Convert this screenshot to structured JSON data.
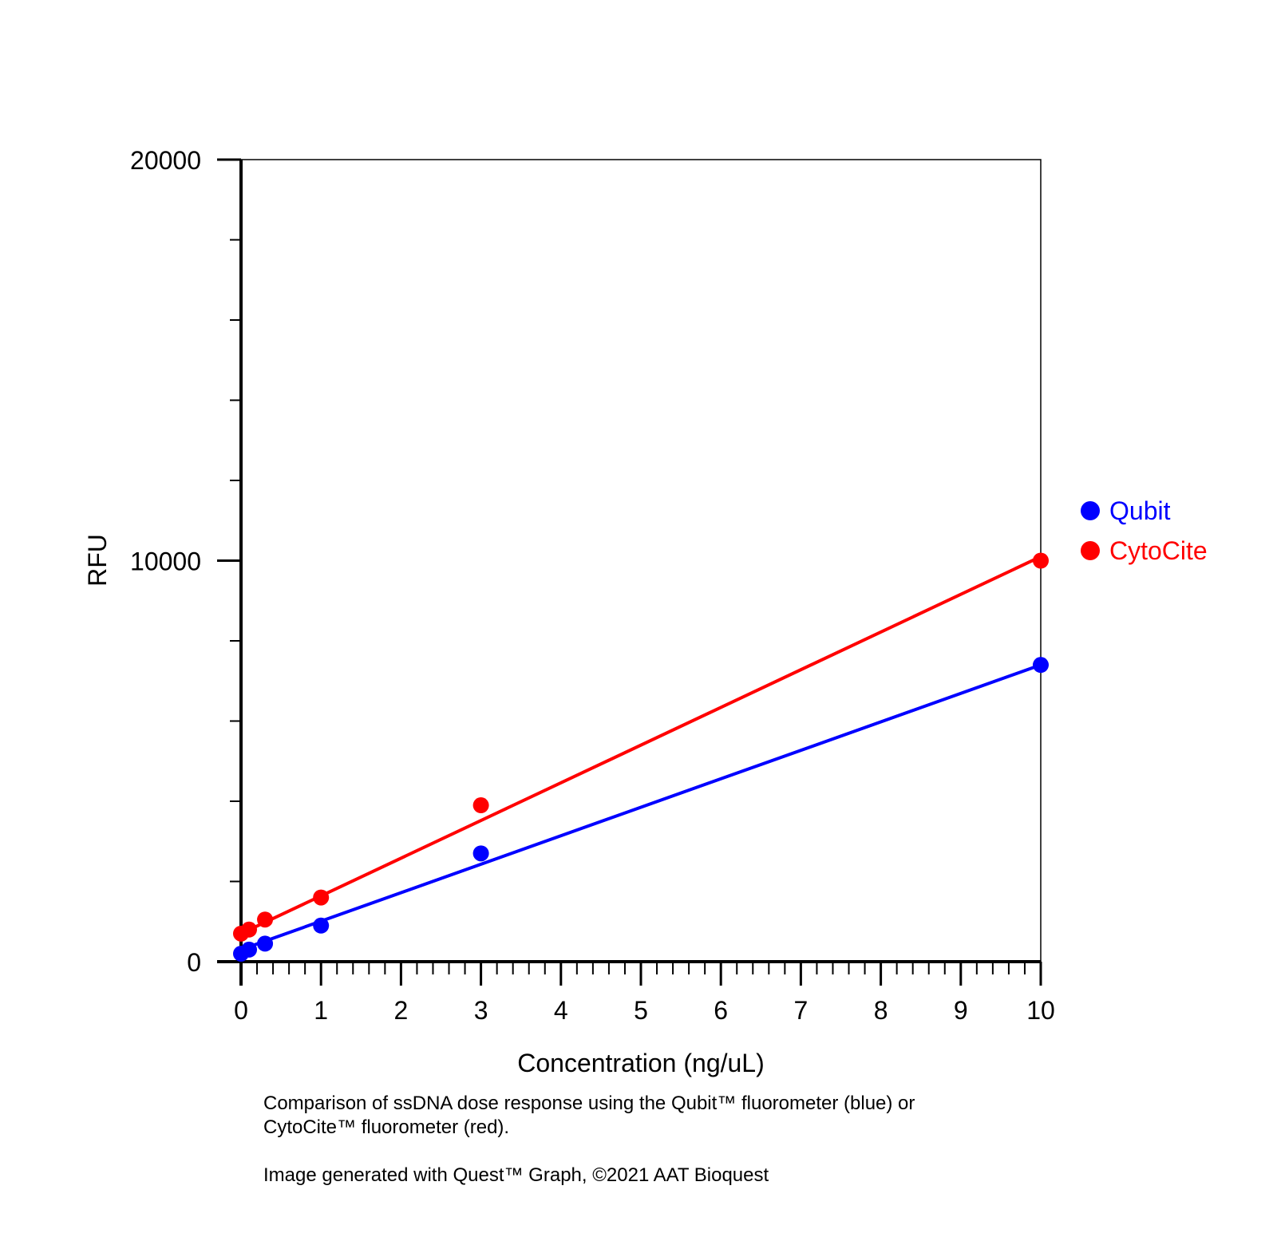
{
  "chart_data": {
    "type": "scatter",
    "xlabel": "Concentration (ng/uL)",
    "ylabel": "RFU",
    "xlim": [
      0,
      10
    ],
    "ylim": [
      0,
      20000
    ],
    "x_ticks": [
      "0",
      "1",
      "2",
      "3",
      "4",
      "5",
      "6",
      "7",
      "8",
      "9",
      "10"
    ],
    "y_ticks": [
      "0",
      "10000",
      "20000"
    ],
    "grid": false,
    "legend_placement": "right",
    "series": [
      {
        "name": "Qubit",
        "color": "#0000ff",
        "x": [
          0,
          0.1,
          0.3,
          1,
          3,
          10
        ],
        "y": [
          200,
          300,
          450,
          900,
          2700,
          7400
        ],
        "fit": [
          [
            0,
            300
          ],
          [
            10,
            7400
          ]
        ]
      },
      {
        "name": "CytoCite",
        "color": "#ff0000",
        "x": [
          0,
          0.1,
          0.3,
          1,
          3,
          10
        ],
        "y": [
          700,
          800,
          1050,
          1600,
          3900,
          10000
        ],
        "fit": [
          [
            0,
            700
          ],
          [
            10,
            10100
          ]
        ]
      }
    ]
  },
  "caption": {
    "line1": "Comparison of ssDNA dose response using the Qubit™ fluorometer (blue) or",
    "line2": "CytoCite™ fluorometer (red).",
    "credit": "Image generated with Quest™ Graph, ©2021 AAT Bioquest"
  }
}
